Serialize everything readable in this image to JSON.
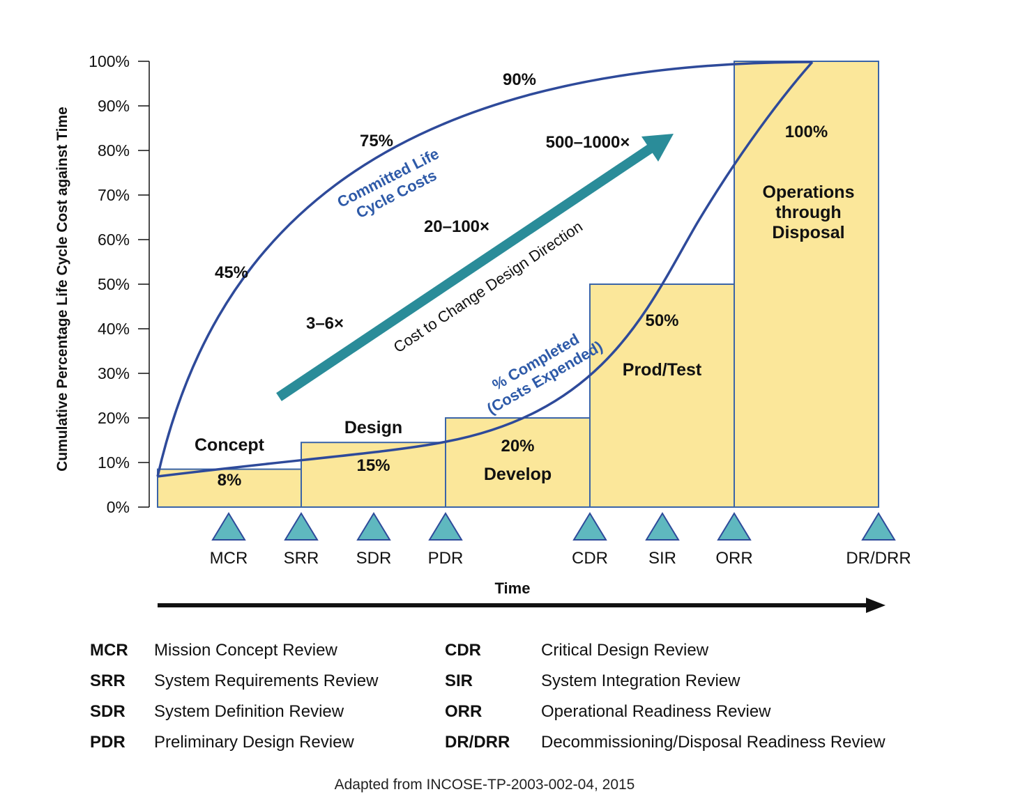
{
  "chart_data": {
    "type": "bar",
    "ylabel": "Cumulative Percentage Life Cycle Cost against Time",
    "xlabel": "Time",
    "ylim": [
      0,
      100
    ],
    "yticks": [
      0,
      10,
      20,
      30,
      40,
      50,
      60,
      70,
      80,
      90,
      100
    ],
    "ytick_labels": [
      "0%",
      "10%",
      "20%",
      "30%",
      "40%",
      "50%",
      "60%",
      "70%",
      "80%",
      "90%",
      "100%"
    ],
    "phases": [
      {
        "name": "Concept",
        "pct_label": "8%",
        "value": 8.5,
        "start": "MCR",
        "end": "SRR"
      },
      {
        "name": "Design",
        "pct_label": "15%",
        "value": 14.5,
        "start": "SRR",
        "end": "PDR"
      },
      {
        "name": "Develop",
        "pct_label": "20%",
        "value": 20,
        "start": "PDR",
        "end": "CDR"
      },
      {
        "name": "Prod/Test",
        "pct_label": "50%",
        "value": 50,
        "start": "CDR",
        "end": "ORR"
      },
      {
        "name": "Operations through Disposal",
        "name_lines": [
          "Operations",
          "through",
          "Disposal"
        ],
        "pct_label": "100%",
        "value": 100,
        "start": "ORR",
        "end": "DR/DRR"
      }
    ],
    "milestones": [
      "MCR",
      "SRR",
      "SDR",
      "PDR",
      "CDR",
      "SIR",
      "ORR",
      "DR/DRR"
    ],
    "series": [
      {
        "name": "Committed Life Cycle Costs",
        "label_lines": [
          "Committed Life",
          "Cycle Costs"
        ],
        "annotations": [
          "45%",
          "75%",
          "90%"
        ],
        "start_value": 7,
        "end_value": 100
      },
      {
        "name": "% Completed (Costs Expended)",
        "label_lines": [
          "% Completed",
          "(Costs Expended)"
        ],
        "start_value": 7,
        "end_value": 100
      }
    ],
    "cost_to_change": {
      "label": "Cost to Change Design Direction",
      "multipliers": [
        "3–6×",
        "20–100×",
        "500–1000×"
      ]
    }
  },
  "legend": [
    {
      "abbr": "MCR",
      "desc": "Mission Concept Review"
    },
    {
      "abbr": "SRR",
      "desc": "System Requirements Review"
    },
    {
      "abbr": "SDR",
      "desc": "System Definition Review"
    },
    {
      "abbr": "PDR",
      "desc": "Preliminary Design Review"
    },
    {
      "abbr": "CDR",
      "desc": "Critical Design Review"
    },
    {
      "abbr": "SIR",
      "desc": "System Integration Review"
    },
    {
      "abbr": "ORR",
      "desc": "Operational Readiness Review"
    },
    {
      "abbr": "DR/DRR",
      "desc": "Decommissioning/Disposal Readiness Review"
    }
  ],
  "source": "Adapted from INCOSE-TP-2003-002-04, 2015",
  "colors": {
    "bar_fill": "#fbe79a",
    "bar_stroke": "#3a64a8",
    "curve": "#2e4a9a",
    "curve_label": "#2e5aa8",
    "arrow": "#2a8c99",
    "milestone_fill": "#5fb8bf",
    "milestone_stroke": "#2e4a9a",
    "time_arrow": "#111111"
  }
}
